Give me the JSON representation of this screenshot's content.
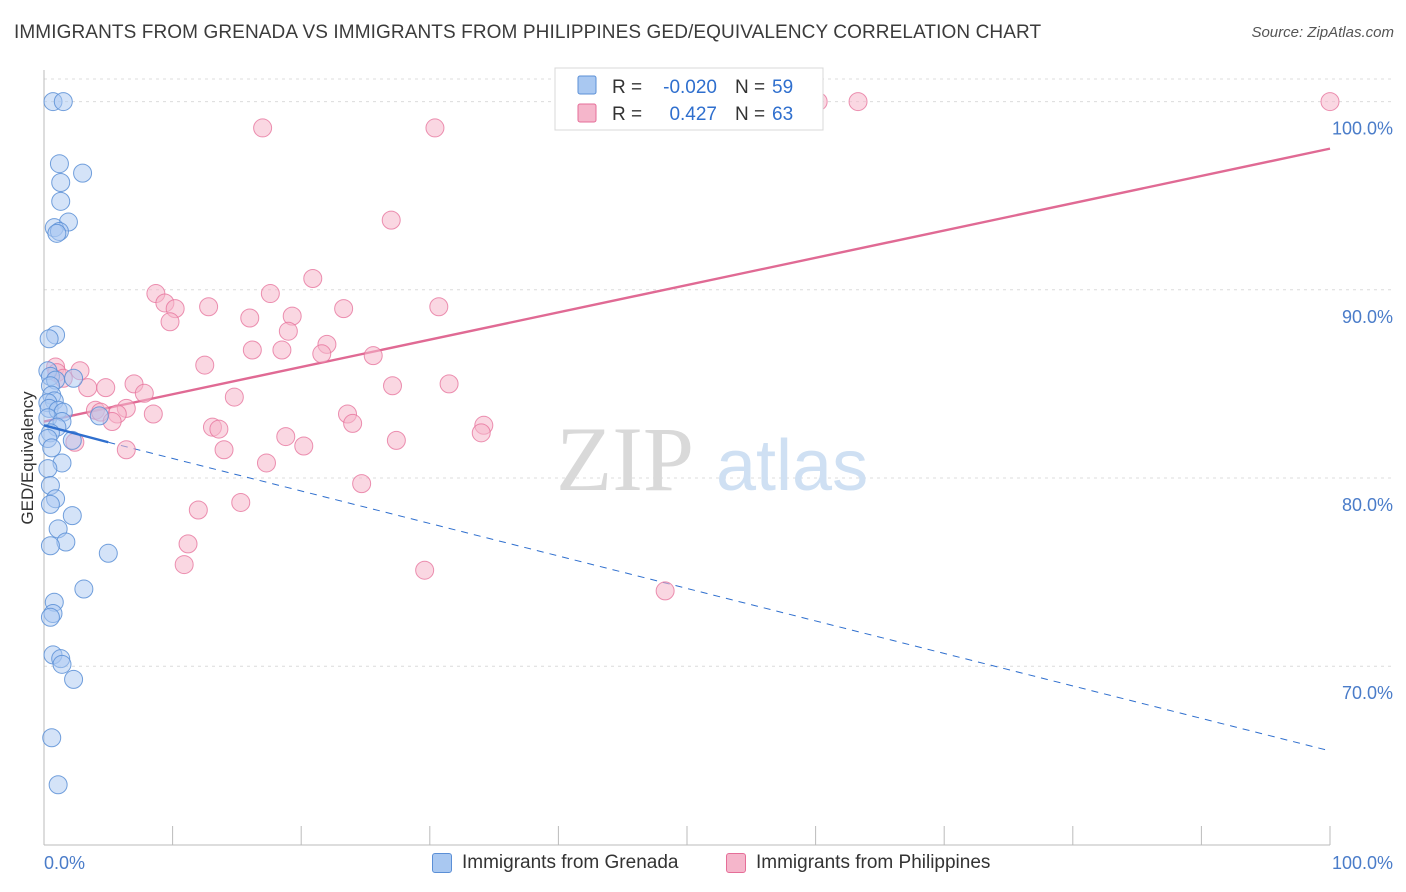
{
  "header": {
    "title": "IMMIGRANTS FROM GRENADA VS IMMIGRANTS FROM PHILIPPINES GED/EQUIVALENCY CORRELATION CHART",
    "source": "Source: ZipAtlas.com"
  },
  "colors": {
    "blue": "#5b8fd6",
    "blue_fill": "#a9c8f1",
    "blue_line": "#2f6fce",
    "pink": "#e56e98",
    "pink_fill": "#f5b6cb",
    "pink_line": "#e06a94",
    "tick_label": "#4a7cc9"
  },
  "watermark": {
    "zip": "ZIP",
    "atlas": "atlas"
  },
  "stats_legend": {
    "rows": [
      {
        "r_label": "R =",
        "r_value": "-0.020",
        "n_label": "N =",
        "n_value": "59"
      },
      {
        "r_label": "R =",
        "r_value": "0.427",
        "n_label": "N =",
        "n_value": "63"
      }
    ]
  },
  "bottom_legend": {
    "series1": "Immigrants from Grenada",
    "series2": "Immigrants from Philippines"
  },
  "chart_data": {
    "type": "scatter",
    "title": "IMMIGRANTS FROM GRENADA VS IMMIGRANTS FROM PHILIPPINES GED/EQUIVALENCY CORRELATION CHART",
    "xlabel": "",
    "ylabel": "GED/Equivalency",
    "xlim": [
      0,
      100
    ],
    "ylim": [
      60.5,
      101.2
    ],
    "x_tick_labels": [
      "0.0%",
      "100.0%"
    ],
    "y_ticks": [
      70,
      80,
      90,
      100
    ],
    "y_tick_labels": [
      "70.0%",
      "80.0%",
      "90.0%",
      "100.0%"
    ],
    "series": [
      {
        "name": "Immigrants from Grenada",
        "R": -0.02,
        "N": 59,
        "points": [
          [
            0.7,
            100.0
          ],
          [
            1.5,
            100.0
          ],
          [
            1.2,
            96.7
          ],
          [
            3.0,
            96.2
          ],
          [
            1.3,
            95.7
          ],
          [
            1.3,
            94.7
          ],
          [
            1.9,
            93.6
          ],
          [
            0.8,
            93.3
          ],
          [
            1.2,
            93.1
          ],
          [
            1.0,
            93.0
          ],
          [
            0.9,
            87.6
          ],
          [
            0.4,
            87.4
          ],
          [
            0.3,
            85.7
          ],
          [
            0.5,
            85.4
          ],
          [
            0.9,
            85.2
          ],
          [
            2.3,
            85.3
          ],
          [
            0.5,
            84.9
          ],
          [
            0.6,
            84.4
          ],
          [
            0.8,
            84.1
          ],
          [
            0.3,
            84.0
          ],
          [
            0.4,
            83.7
          ],
          [
            1.1,
            83.6
          ],
          [
            1.5,
            83.5
          ],
          [
            4.3,
            83.3
          ],
          [
            0.3,
            83.2
          ],
          [
            1.4,
            83.0
          ],
          [
            1.0,
            82.7
          ],
          [
            0.5,
            82.4
          ],
          [
            2.2,
            82.0
          ],
          [
            0.3,
            82.1
          ],
          [
            0.6,
            81.6
          ],
          [
            1.4,
            80.8
          ],
          [
            0.3,
            80.5
          ],
          [
            0.5,
            79.6
          ],
          [
            0.9,
            78.9
          ],
          [
            0.5,
            78.6
          ],
          [
            2.2,
            78.0
          ],
          [
            1.1,
            77.3
          ],
          [
            1.7,
            76.6
          ],
          [
            0.5,
            76.4
          ],
          [
            5.0,
            76.0
          ],
          [
            3.1,
            74.1
          ],
          [
            0.8,
            73.4
          ],
          [
            0.7,
            72.8
          ],
          [
            0.5,
            72.6
          ],
          [
            0.7,
            70.6
          ],
          [
            1.3,
            70.4
          ],
          [
            1.4,
            70.1
          ],
          [
            2.3,
            69.3
          ],
          [
            0.6,
            66.2
          ],
          [
            1.1,
            63.7
          ]
        ],
        "trend_solid": [
          [
            0.0,
            82.8
          ],
          [
            5.0,
            81.9
          ]
        ],
        "trend_dashed": [
          [
            5.0,
            81.9
          ],
          [
            100.0,
            65.5
          ]
        ]
      },
      {
        "name": "Immigrants from Philippines",
        "R": 0.427,
        "N": 63,
        "points": [
          [
            60.2,
            100.0
          ],
          [
            63.3,
            100.0
          ],
          [
            100.0,
            100.0
          ],
          [
            17.0,
            98.6
          ],
          [
            30.4,
            98.6
          ],
          [
            27.0,
            93.7
          ],
          [
            20.9,
            90.6
          ],
          [
            8.7,
            89.8
          ],
          [
            17.6,
            89.8
          ],
          [
            9.4,
            89.3
          ],
          [
            10.2,
            89.0
          ],
          [
            12.8,
            89.1
          ],
          [
            23.3,
            89.0
          ],
          [
            30.7,
            89.1
          ],
          [
            16.0,
            88.5
          ],
          [
            19.3,
            88.6
          ],
          [
            9.8,
            88.3
          ],
          [
            19.0,
            87.8
          ],
          [
            22.0,
            87.1
          ],
          [
            16.2,
            86.8
          ],
          [
            18.5,
            86.8
          ],
          [
            21.6,
            86.6
          ],
          [
            25.6,
            86.5
          ],
          [
            12.5,
            86.0
          ],
          [
            0.9,
            85.9
          ],
          [
            1.0,
            85.6
          ],
          [
            2.8,
            85.7
          ],
          [
            1.5,
            85.3
          ],
          [
            7.0,
            85.0
          ],
          [
            31.5,
            85.0
          ],
          [
            27.1,
            84.9
          ],
          [
            3.4,
            84.8
          ],
          [
            4.8,
            84.8
          ],
          [
            7.8,
            84.5
          ],
          [
            14.8,
            84.3
          ],
          [
            6.4,
            83.7
          ],
          [
            4.0,
            83.6
          ],
          [
            4.4,
            83.5
          ],
          [
            5.7,
            83.4
          ],
          [
            8.5,
            83.4
          ],
          [
            23.6,
            83.4
          ],
          [
            5.3,
            83.0
          ],
          [
            24.0,
            82.9
          ],
          [
            34.2,
            82.8
          ],
          [
            13.1,
            82.7
          ],
          [
            13.6,
            82.6
          ],
          [
            18.8,
            82.2
          ],
          [
            27.4,
            82.0
          ],
          [
            2.4,
            81.9
          ],
          [
            20.2,
            81.7
          ],
          [
            14.0,
            81.5
          ],
          [
            6.4,
            81.5
          ],
          [
            34.0,
            82.4
          ],
          [
            17.3,
            80.8
          ],
          [
            24.7,
            79.7
          ],
          [
            15.3,
            78.7
          ],
          [
            12.0,
            78.3
          ],
          [
            11.2,
            76.5
          ],
          [
            10.9,
            75.4
          ],
          [
            29.6,
            75.1
          ],
          [
            48.3,
            74.0
          ]
        ],
        "trend_solid": [
          [
            0.0,
            83.0
          ],
          [
            100.0,
            97.5
          ]
        ]
      }
    ]
  }
}
